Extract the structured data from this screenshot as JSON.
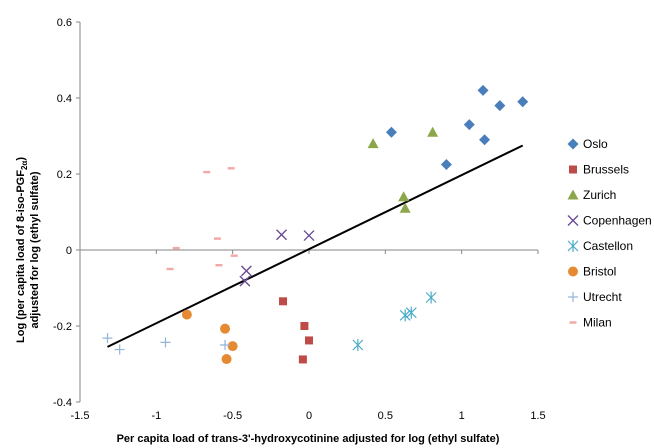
{
  "chart_data": {
    "type": "scatter",
    "title": "",
    "xlabel": "Per capita load of trans-3'-hydroxycotinine adjusted for log (ethyl sulfate)",
    "ylabel_line1": "Log (per capita load of 8-iso-PGF",
    "ylabel_sub": "2α",
    "ylabel_line1_end": ")",
    "ylabel_line2": "adjusted for log (ethyl sulfate)",
    "xlim": [
      -1.5,
      1.5
    ],
    "ylim": [
      -0.4,
      0.6
    ],
    "x_ticks": [
      -1.5,
      -1,
      -0.5,
      0,
      0.5,
      1,
      1.5
    ],
    "x_tick_labels": [
      "-1.5",
      "-1",
      "-0.5",
      "0",
      "0.5",
      "1",
      "1.5"
    ],
    "y_ticks": [
      -0.4,
      -0.2,
      0,
      0.2,
      0.4,
      0.6
    ],
    "y_tick_labels": [
      "-0.4",
      "-0.2",
      "0",
      "0.2",
      "0.4",
      "0.6"
    ],
    "grid": false,
    "legend_position": "right",
    "trendline": {
      "x": [
        -1.32,
        1.4
      ],
      "y": [
        -0.255,
        0.275
      ]
    },
    "series": [
      {
        "name": "Oslo",
        "marker": "diamond",
        "color": "#4a7ebb",
        "points": [
          [
            0.54,
            0.31
          ],
          [
            1.05,
            0.33
          ],
          [
            1.14,
            0.42
          ],
          [
            1.25,
            0.38
          ],
          [
            1.4,
            0.39
          ],
          [
            1.15,
            0.29
          ],
          [
            0.9,
            0.225
          ]
        ]
      },
      {
        "name": "Brussels",
        "marker": "square",
        "color": "#be4b48",
        "points": [
          [
            -0.17,
            -0.135
          ],
          [
            -0.03,
            -0.2
          ],
          [
            0.0,
            -0.238
          ],
          [
            -0.04,
            -0.288
          ]
        ]
      },
      {
        "name": "Zurich",
        "marker": "triangle",
        "color": "#8ca64a",
        "points": [
          [
            0.42,
            0.28
          ],
          [
            0.81,
            0.31
          ],
          [
            0.62,
            0.14
          ],
          [
            0.63,
            0.11
          ]
        ]
      },
      {
        "name": "Copenhagen",
        "marker": "x",
        "color": "#6a4c93",
        "points": [
          [
            -0.18,
            0.04
          ],
          [
            0.0,
            0.038
          ],
          [
            -0.41,
            -0.055
          ],
          [
            -0.42,
            -0.082
          ]
        ]
      },
      {
        "name": "Castellon",
        "marker": "asterisk",
        "color": "#4aacc6",
        "points": [
          [
            0.32,
            -0.25
          ],
          [
            0.63,
            -0.172
          ],
          [
            0.67,
            -0.165
          ],
          [
            0.8,
            -0.125
          ]
        ]
      },
      {
        "name": "Bristol",
        "marker": "circle",
        "color": "#e58a33",
        "points": [
          [
            -0.8,
            -0.17
          ],
          [
            -0.55,
            -0.207
          ],
          [
            -0.5,
            -0.253
          ],
          [
            -0.54,
            -0.287
          ]
        ]
      },
      {
        "name": "Utrecht",
        "marker": "plus",
        "color": "#95b3d7",
        "points": [
          [
            -1.32,
            -0.232
          ],
          [
            -1.24,
            -0.262
          ],
          [
            -0.94,
            -0.243
          ],
          [
            -0.55,
            -0.25
          ]
        ]
      },
      {
        "name": "Milan",
        "marker": "dash",
        "color": "#f2a8a6",
        "points": [
          [
            -0.67,
            0.205
          ],
          [
            -0.51,
            0.215
          ],
          [
            -0.87,
            0.005
          ],
          [
            -0.6,
            0.03
          ],
          [
            -0.91,
            -0.05
          ],
          [
            -0.59,
            -0.04
          ],
          [
            -0.49,
            -0.015
          ]
        ]
      }
    ]
  }
}
